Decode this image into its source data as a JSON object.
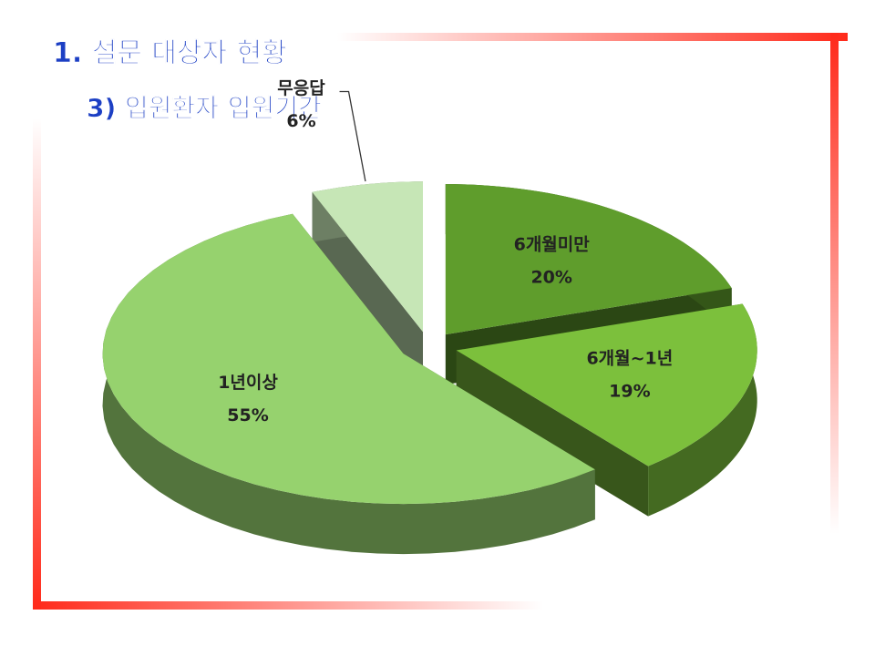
{
  "chart_data": {
    "type": "pie",
    "title": "1.   설문 대상자 현황",
    "subtitle": "3) 입원환자 입원기간",
    "categories": [
      "6개월미만",
      "6개월~1년",
      "1년이상",
      "무응답"
    ],
    "values": [
      20,
      19,
      55,
      6
    ],
    "value_labels": [
      "20%",
      "19%",
      "55%",
      "6%"
    ],
    "colors": [
      "#5f9d2c",
      "#7cc03c",
      "#96d26e",
      "#c6e6b6"
    ]
  }
}
